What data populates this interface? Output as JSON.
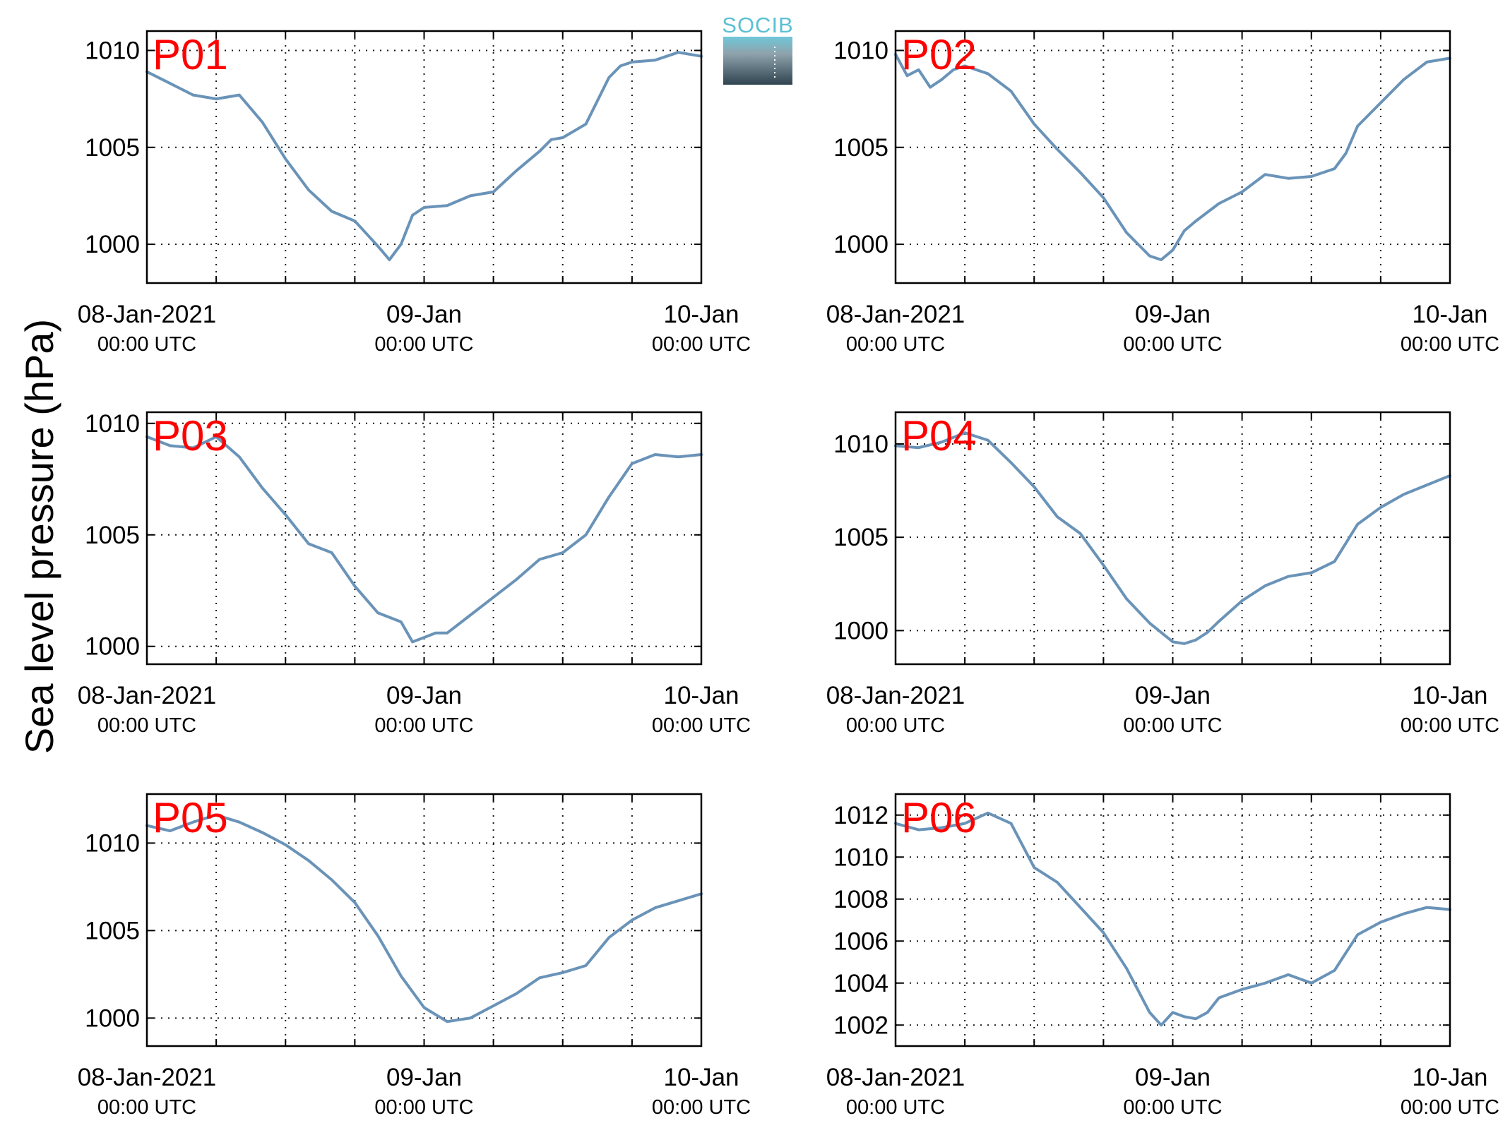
{
  "figure": {
    "ylabel": "Sea level pressure (hPa)",
    "logo_text": "SOCIB"
  },
  "colors": {
    "series": "#6a93b8",
    "panel_label": "#ff0000",
    "logo_accent": "#5bc0d3",
    "logo_dark": "#2f4450"
  },
  "chart_data": [
    {
      "type": "line",
      "label": "P01",
      "x_ticks": [
        {
          "main": "08-Jan-2021",
          "sub": "00:00 UTC"
        },
        {
          "main": "09-Jan",
          "sub": "00:00 UTC"
        },
        {
          "main": "10-Jan",
          "sub": "00:00 UTC"
        }
      ],
      "x_range_hours": [
        0,
        48
      ],
      "ylim": [
        998,
        1011
      ],
      "yticks": [
        1000,
        1005,
        1010
      ],
      "grid": true,
      "x_hours": [
        0,
        2,
        4,
        6,
        8,
        10,
        12,
        14,
        16,
        18,
        20,
        21,
        22,
        23,
        24,
        26,
        28,
        30,
        32,
        34,
        35,
        36,
        38,
        40,
        41,
        42,
        44,
        46,
        48
      ],
      "values": [
        1008.9,
        1008.3,
        1007.7,
        1007.5,
        1007.7,
        1006.3,
        1004.4,
        1002.8,
        1001.7,
        1001.2,
        999.9,
        999.2,
        1000.0,
        1001.5,
        1001.9,
        1002.0,
        1002.5,
        1002.7,
        1003.8,
        1004.8,
        1005.4,
        1005.5,
        1006.2,
        1008.6,
        1009.2,
        1009.4,
        1009.5,
        1009.9,
        1009.7
      ]
    },
    {
      "type": "line",
      "label": "P02",
      "x_ticks": [
        {
          "main": "08-Jan-2021",
          "sub": "00:00 UTC"
        },
        {
          "main": "09-Jan",
          "sub": "00:00 UTC"
        },
        {
          "main": "10-Jan",
          "sub": "00:00 UTC"
        }
      ],
      "x_range_hours": [
        0,
        48
      ],
      "ylim": [
        998,
        1011
      ],
      "yticks": [
        1000,
        1005,
        1010
      ],
      "grid": true,
      "x_hours": [
        0,
        1,
        2,
        3,
        4,
        5,
        6,
        8,
        10,
        12,
        14,
        16,
        18,
        20,
        22,
        23,
        24,
        25,
        26,
        28,
        30,
        32,
        34,
        36,
        38,
        39,
        40,
        42,
        44,
        46,
        48
      ],
      "values": [
        1009.8,
        1008.7,
        1009.0,
        1008.1,
        1008.5,
        1009.0,
        1009.2,
        1008.8,
        1007.9,
        1006.2,
        1004.9,
        1003.7,
        1002.4,
        1000.6,
        999.4,
        999.2,
        999.7,
        1000.7,
        1001.2,
        1002.1,
        1002.7,
        1003.6,
        1003.4,
        1003.5,
        1003.9,
        1004.7,
        1006.1,
        1007.3,
        1008.5,
        1009.4,
        1009.6
      ]
    },
    {
      "type": "line",
      "label": "P03",
      "x_ticks": [
        {
          "main": "08-Jan-2021",
          "sub": "00:00 UTC"
        },
        {
          "main": "09-Jan",
          "sub": "00:00 UTC"
        },
        {
          "main": "10-Jan",
          "sub": "00:00 UTC"
        }
      ],
      "x_range_hours": [
        0,
        48
      ],
      "ylim": [
        999.2,
        1010.5
      ],
      "yticks": [
        1000,
        1005,
        1010
      ],
      "grid": true,
      "x_hours": [
        0,
        2,
        4,
        6,
        8,
        10,
        12,
        14,
        16,
        18,
        20,
        22,
        23,
        24,
        25,
        26,
        28,
        30,
        32,
        34,
        36,
        38,
        40,
        42,
        44,
        46,
        48
      ],
      "values": [
        1009.4,
        1009.0,
        1008.9,
        1009.4,
        1008.5,
        1007.1,
        1005.9,
        1004.6,
        1004.2,
        1002.7,
        1001.5,
        1001.1,
        1000.2,
        1000.4,
        1000.6,
        1000.6,
        1001.4,
        1002.2,
        1003.0,
        1003.9,
        1004.2,
        1005.0,
        1006.7,
        1008.2,
        1008.6,
        1008.5,
        1008.6
      ]
    },
    {
      "type": "line",
      "label": "P04",
      "x_ticks": [
        {
          "main": "08-Jan-2021",
          "sub": "00:00 UTC"
        },
        {
          "main": "09-Jan",
          "sub": "00:00 UTC"
        },
        {
          "main": "10-Jan",
          "sub": "00:00 UTC"
        }
      ],
      "x_range_hours": [
        0,
        48
      ],
      "ylim": [
        998.2,
        1011.7
      ],
      "yticks": [
        1000,
        1005,
        1010
      ],
      "grid": true,
      "x_hours": [
        0,
        2,
        4,
        6,
        8,
        10,
        12,
        14,
        16,
        18,
        20,
        22,
        24,
        25,
        26,
        27,
        28,
        30,
        32,
        34,
        36,
        38,
        40,
        42,
        44,
        46,
        48
      ],
      "values": [
        1009.9,
        1009.8,
        1010.1,
        1010.6,
        1010.2,
        1009.0,
        1007.7,
        1006.1,
        1005.2,
        1003.5,
        1001.7,
        1000.4,
        999.4,
        999.3,
        999.5,
        999.9,
        1000.5,
        1001.6,
        1002.4,
        1002.9,
        1003.1,
        1003.7,
        1005.7,
        1006.6,
        1007.3,
        1007.8,
        1008.3
      ]
    },
    {
      "type": "line",
      "label": "P05",
      "x_ticks": [
        {
          "main": "08-Jan-2021",
          "sub": "00:00 UTC"
        },
        {
          "main": "09-Jan",
          "sub": "00:00 UTC"
        },
        {
          "main": "10-Jan",
          "sub": "00:00 UTC"
        }
      ],
      "x_range_hours": [
        0,
        48
      ],
      "ylim": [
        998.4,
        1012.8
      ],
      "yticks": [
        1000,
        1005,
        1010
      ],
      "grid": true,
      "x_hours": [
        0,
        2,
        4,
        6,
        8,
        10,
        12,
        14,
        16,
        18,
        20,
        22,
        24,
        26,
        28,
        30,
        32,
        34,
        36,
        38,
        40,
        42,
        44,
        46,
        48
      ],
      "values": [
        1011.0,
        1010.7,
        1011.2,
        1011.6,
        1011.2,
        1010.6,
        1009.9,
        1009.0,
        1007.9,
        1006.6,
        1004.7,
        1002.4,
        1000.6,
        999.8,
        1000.0,
        1000.7,
        1001.4,
        1002.3,
        1002.6,
        1003.0,
        1004.6,
        1005.6,
        1006.3,
        1006.7,
        1007.1
      ]
    },
    {
      "type": "line",
      "label": "P06",
      "x_ticks": [
        {
          "main": "08-Jan-2021",
          "sub": "00:00 UTC"
        },
        {
          "main": "09-Jan",
          "sub": "00:00 UTC"
        },
        {
          "main": "10-Jan",
          "sub": "00:00 UTC"
        }
      ],
      "x_range_hours": [
        0,
        48
      ],
      "ylim": [
        1001,
        1013
      ],
      "yticks": [
        1002,
        1004,
        1006,
        1008,
        1010,
        1012
      ],
      "grid": true,
      "x_hours": [
        0,
        2,
        4,
        6,
        8,
        10,
        12,
        14,
        16,
        18,
        20,
        22,
        23,
        24,
        25,
        26,
        27,
        28,
        30,
        32,
        34,
        36,
        38,
        40,
        42,
        44,
        46,
        48
      ],
      "values": [
        1011.6,
        1011.3,
        1011.4,
        1011.6,
        1012.1,
        1011.6,
        1009.5,
        1008.8,
        1007.6,
        1006.4,
        1004.7,
        1002.6,
        1002.0,
        1002.6,
        1002.4,
        1002.3,
        1002.6,
        1003.3,
        1003.7,
        1004.0,
        1004.4,
        1004.0,
        1004.6,
        1006.3,
        1006.9,
        1007.3,
        1007.6,
        1007.5
      ]
    }
  ]
}
